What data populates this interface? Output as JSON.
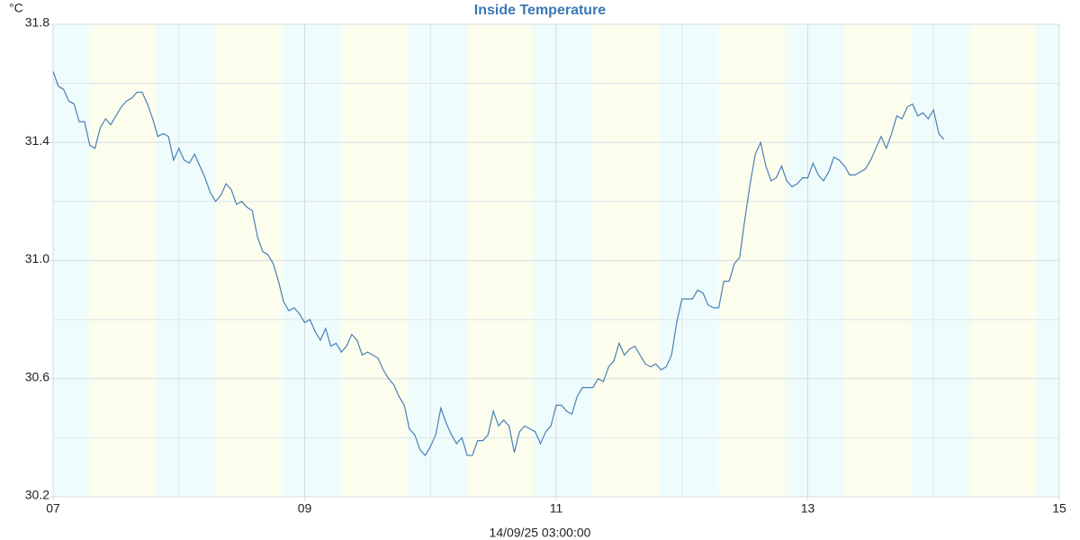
{
  "chart_data": {
    "type": "line",
    "title": "Inside Temperature",
    "y_unit": "°C",
    "x_label": "14/09/25 03:00:00",
    "xlim": [
      7,
      15
    ],
    "ylim": [
      30.2,
      31.8
    ],
    "xticks": [
      {
        "value": 7,
        "label": "07"
      },
      {
        "value": 9,
        "label": "09"
      },
      11,
      13,
      15
    ],
    "x_minor_ticks": [
      8,
      10,
      12,
      14
    ],
    "yticks": [
      30.2,
      30.6,
      {
        "value": 31,
        "label": "31.0"
      },
      31.4,
      31.8
    ],
    "y_minor_ticks": [
      30.4,
      30.8,
      31.2,
      31.6
    ],
    "grid": true,
    "background_color": "#effcfc",
    "shade_color": "#fdfdee",
    "shaded_x_ranges": [
      {
        "from": 7.29,
        "to": 7.82
      },
      {
        "from": 8.29,
        "to": 8.82
      },
      {
        "from": 9.29,
        "to": 9.82
      },
      {
        "from": 10.29,
        "to": 10.82
      },
      {
        "from": 11.29,
        "to": 11.82
      },
      {
        "from": 12.29,
        "to": 12.82
      },
      {
        "from": 13.29,
        "to": 13.82
      },
      {
        "from": 14.29,
        "to": 14.82
      }
    ],
    "series": [
      {
        "name": "Inside Temperature",
        "color": "#4a7fb5",
        "x": [
          7,
          7.042,
          7.083,
          7.125,
          7.167,
          7.208,
          7.25,
          7.292,
          7.333,
          7.375,
          7.417,
          7.458,
          7.5,
          7.542,
          7.583,
          7.625,
          7.667,
          7.708,
          7.75,
          7.792,
          7.833,
          7.875,
          7.917,
          7.958,
          8,
          8.042,
          8.083,
          8.125,
          8.167,
          8.208,
          8.25,
          8.292,
          8.333,
          8.375,
          8.417,
          8.458,
          8.5,
          8.542,
          8.583,
          8.625,
          8.667,
          8.708,
          8.75,
          8.792,
          8.833,
          8.875,
          8.917,
          8.958,
          9,
          9.042,
          9.083,
          9.125,
          9.167,
          9.208,
          9.25,
          9.292,
          9.333,
          9.375,
          9.417,
          9.458,
          9.5,
          9.542,
          9.583,
          9.625,
          9.667,
          9.708,
          9.75,
          9.792,
          9.833,
          9.875,
          9.917,
          9.958,
          10,
          10.042,
          10.083,
          10.125,
          10.167,
          10.208,
          10.25,
          10.292,
          10.333,
          10.375,
          10.417,
          10.458,
          10.5,
          10.542,
          10.583,
          10.625,
          10.667,
          10.708,
          10.75,
          10.792,
          10.833,
          10.875,
          10.917,
          10.958,
          11,
          11.042,
          11.083,
          11.125,
          11.167,
          11.208,
          11.25,
          11.292,
          11.333,
          11.375,
          11.417,
          11.458,
          11.5,
          11.542,
          11.583,
          11.625,
          11.667,
          11.708,
          11.75,
          11.792,
          11.833,
          11.875,
          11.917,
          11.958,
          12,
          12.042,
          12.083,
          12.125,
          12.167,
          12.208,
          12.25,
          12.292,
          12.333,
          12.375,
          12.417,
          12.458,
          12.5,
          12.542,
          12.583,
          12.625,
          12.667,
          12.708,
          12.75,
          12.792,
          12.833,
          12.875,
          12.917,
          12.958,
          13,
          13.042,
          13.083,
          13.125,
          13.167,
          13.208,
          13.25,
          13.292,
          13.333,
          13.375,
          13.417,
          13.458,
          13.5,
          13.542,
          13.583,
          13.625,
          13.667,
          13.708,
          13.75,
          13.792,
          13.833,
          13.875,
          13.917,
          13.958,
          14,
          14.042,
          14.083
        ],
        "values": [
          31.64,
          31.59,
          31.58,
          31.54,
          31.53,
          31.47,
          31.47,
          31.39,
          31.38,
          31.45,
          31.48,
          31.46,
          31.49,
          31.52,
          31.54,
          31.55,
          31.57,
          31.57,
          31.53,
          31.48,
          31.42,
          31.43,
          31.42,
          31.34,
          31.38,
          31.34,
          31.33,
          31.36,
          31.32,
          31.28,
          31.23,
          31.2,
          31.22,
          31.26,
          31.24,
          31.19,
          31.2,
          31.18,
          31.17,
          31.08,
          31.03,
          31.02,
          30.99,
          30.93,
          30.86,
          30.83,
          30.84,
          30.82,
          30.79,
          30.8,
          30.76,
          30.73,
          30.77,
          30.71,
          30.72,
          30.69,
          30.71,
          30.75,
          30.73,
          30.68,
          30.69,
          30.68,
          30.67,
          30.63,
          30.6,
          30.58,
          30.54,
          30.51,
          30.43,
          30.41,
          30.36,
          30.34,
          30.37,
          30.41,
          30.5,
          30.45,
          30.41,
          30.38,
          30.4,
          30.34,
          30.34,
          30.39,
          30.39,
          30.41,
          30.49,
          30.44,
          30.46,
          30.44,
          30.35,
          30.42,
          30.44,
          30.43,
          30.42,
          30.38,
          30.42,
          30.44,
          30.51,
          30.51,
          30.49,
          30.48,
          30.54,
          30.57,
          30.57,
          30.57,
          30.6,
          30.59,
          30.64,
          30.66,
          30.72,
          30.68,
          30.7,
          30.71,
          30.68,
          30.65,
          30.64,
          30.65,
          30.63,
          30.64,
          30.68,
          30.79,
          30.87,
          30.87,
          30.87,
          30.9,
          30.89,
          30.85,
          30.84,
          30.84,
          30.93,
          30.93,
          30.99,
          31.01,
          31.14,
          31.26,
          31.36,
          31.4,
          31.32,
          31.27,
          31.28,
          31.32,
          31.27,
          31.25,
          31.26,
          31.28,
          31.28,
          31.33,
          31.29,
          31.27,
          31.3,
          31.35,
          31.34,
          31.32,
          31.29,
          31.29,
          31.3,
          31.31,
          31.34,
          31.38,
          31.42,
          31.38,
          31.43,
          31.49,
          31.48,
          31.52,
          31.53,
          31.49,
          31.5,
          31.48,
          31.51,
          31.43,
          31.41
        ]
      }
    ]
  }
}
